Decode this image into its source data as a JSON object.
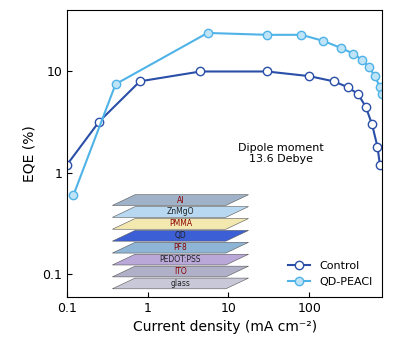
{
  "chart_data": {
    "type": "line",
    "x_label": "Current density (mA cm⁻²)",
    "y_label": "EQE (%)",
    "log": true,
    "grid": false,
    "legend": "lower right",
    "xlim": [
      0.1,
      800
    ],
    "ylim": [
      0.06,
      40
    ],
    "xticks": [
      0.1,
      1,
      10,
      100
    ],
    "yticks": [
      0.1,
      1,
      10
    ],
    "series": [
      {
        "name": "Control",
        "color": "#2a4fa8",
        "marker": "o",
        "x": [
          0.1,
          0.25,
          0.8,
          4.5,
          30,
          100,
          200,
          300,
          400,
          500,
          600,
          700,
          750
        ],
        "values": [
          1.2,
          3.2,
          8,
          10,
          10,
          9,
          8,
          7,
          6,
          4.5,
          3,
          1.8,
          1.2
        ]
      },
      {
        "name": "QD-PEACl",
        "color": "#4fb3e8",
        "marker": "o",
        "x": [
          0.12,
          0.4,
          5.5,
          30,
          80,
          150,
          250,
          350,
          450,
          550,
          650,
          750,
          800
        ],
        "values": [
          0.6,
          7.5,
          24,
          23,
          23,
          20,
          17,
          15,
          13,
          11,
          9,
          7,
          6
        ]
      }
    ],
    "layer_labels": [
      "glass",
      "ITO",
      "PEDOT:PSS",
      "PF8",
      "QD",
      "PMMA",
      "ZnMgO",
      "Al"
    ],
    "annotation": "Dipole moment\n13.6 Debye"
  }
}
